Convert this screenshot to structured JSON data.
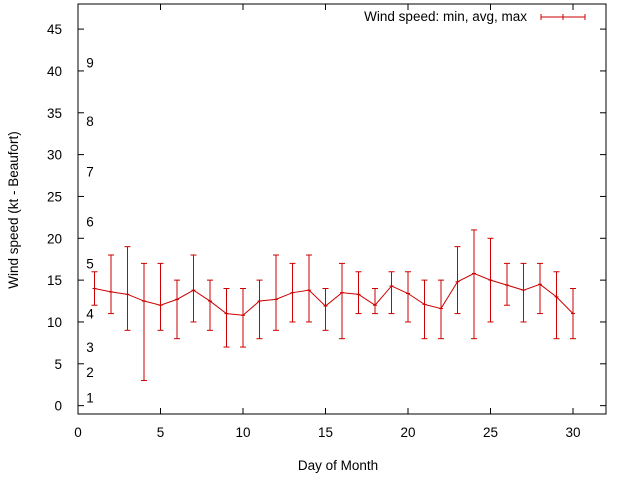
{
  "chart_data": {
    "type": "line",
    "title": "",
    "xlabel": "Day of Month",
    "ylabel": "Wind speed (kt - Beaufort)",
    "xlim": [
      0,
      32
    ],
    "ylim": [
      -1,
      48
    ],
    "x_ticks": [
      0,
      5,
      10,
      15,
      20,
      25,
      30
    ],
    "y_ticks": [
      0,
      5,
      10,
      15,
      20,
      25,
      30,
      35,
      40,
      45
    ],
    "beaufort_labels": [
      {
        "label": "1",
        "value": 1
      },
      {
        "label": "2",
        "value": 4
      },
      {
        "label": "3",
        "value": 7
      },
      {
        "label": "4",
        "value": 11
      },
      {
        "label": "5",
        "value": 17
      },
      {
        "label": "6",
        "value": 22
      },
      {
        "label": "7",
        "value": 28
      },
      {
        "label": "8",
        "value": 34
      },
      {
        "label": "9",
        "value": 41
      }
    ],
    "legend_position": "top-right",
    "grid": false,
    "series_color": "#cc0000",
    "series": [
      {
        "name": "Wind speed: min, avg, max",
        "x": [
          1,
          2,
          3,
          4,
          5,
          6,
          7,
          8,
          9,
          10,
          11,
          12,
          13,
          14,
          15,
          16,
          17,
          18,
          19,
          20,
          21,
          22,
          23,
          24,
          25,
          26,
          27,
          28,
          29,
          30
        ],
        "avg": [
          14,
          13.6,
          13.3,
          12.5,
          12,
          12.7,
          13.8,
          12.5,
          11,
          10.8,
          12.5,
          12.7,
          13.5,
          13.8,
          11.9,
          13.5,
          13.3,
          12,
          14.3,
          13.4,
          12.1,
          11.6,
          14.8,
          15.8,
          15,
          14.4,
          13.8,
          14.5,
          13,
          11
        ],
        "min": [
          12,
          11,
          9,
          3,
          9,
          8,
          10,
          9,
          7,
          7,
          8,
          9,
          10,
          10,
          9,
          8,
          11,
          11,
          11,
          10,
          8,
          8,
          11,
          8,
          10,
          12,
          10,
          11,
          8,
          8
        ],
        "max": [
          16,
          18,
          19,
          17,
          17,
          15,
          18,
          15,
          14,
          14,
          15,
          18,
          17,
          18,
          14,
          17,
          16,
          14,
          16,
          16,
          15,
          15,
          19,
          21,
          20,
          17,
          17,
          17,
          16,
          14
        ]
      }
    ]
  }
}
